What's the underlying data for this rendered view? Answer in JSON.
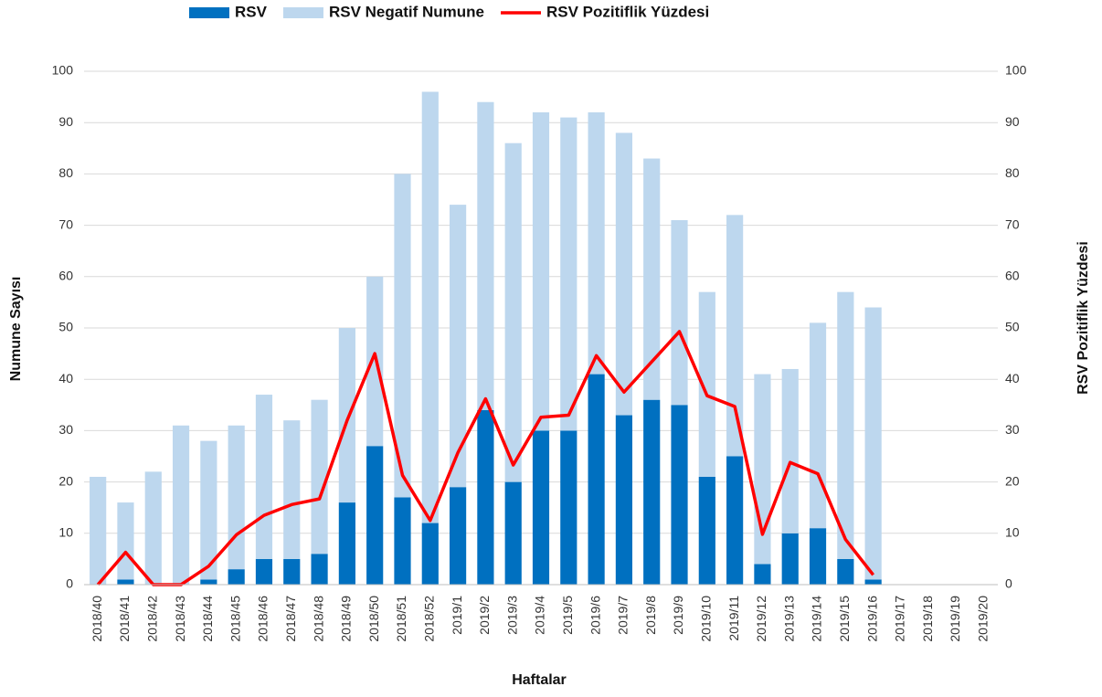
{
  "chart_data": {
    "type": "bar",
    "categories": [
      "2018/40",
      "2018/41",
      "2018/42",
      "2018/43",
      "2018/44",
      "2018/45",
      "2018/46",
      "2018/47",
      "2018/48",
      "2018/49",
      "2018/50",
      "2018/51",
      "2018/52",
      "2019/1",
      "2019/2",
      "2019/3",
      "2019/4",
      "2019/5",
      "2019/6",
      "2019/7",
      "2019/8",
      "2019/9",
      "2019/10",
      "2019/11",
      "2019/12",
      "2019/13",
      "2019/14",
      "2019/15",
      "2019/16",
      "2019/17",
      "2019/18",
      "2019/19",
      "2019/20"
    ],
    "series": [
      {
        "name": "RSV",
        "type": "bar",
        "stacked": true,
        "color": "#0070c0",
        "values": [
          0,
          1,
          0,
          0,
          1,
          3,
          5,
          5,
          6,
          16,
          27,
          17,
          12,
          19,
          34,
          20,
          30,
          30,
          41,
          33,
          36,
          35,
          21,
          25,
          4,
          10,
          11,
          5,
          1,
          null,
          null,
          null,
          null
        ]
      },
      {
        "name": "RSV Negatif Numune",
        "type": "bar",
        "stacked": true,
        "color": "#bdd7ee",
        "values": [
          21,
          15,
          22,
          31,
          27,
          28,
          32,
          27,
          30,
          34,
          33,
          63,
          84,
          55,
          60,
          66,
          62,
          61,
          51,
          55,
          47,
          36,
          36,
          47,
          37,
          32,
          40,
          52,
          53,
          null,
          null,
          null,
          null
        ]
      },
      {
        "name": "RSV Pozitiflik Yüzdesi",
        "type": "line",
        "axis": "y2",
        "color": "#ff0000",
        "values": [
          0,
          6.3,
          0,
          0,
          3.6,
          9.7,
          13.5,
          15.6,
          16.7,
          32,
          45,
          21.3,
          12.5,
          25.7,
          36.2,
          23.3,
          32.6,
          33,
          44.6,
          37.5,
          43.4,
          49.3,
          36.8,
          34.7,
          9.8,
          23.8,
          21.6,
          8.8,
          1.9,
          null,
          null,
          null,
          null
        ]
      }
    ],
    "x_label": "Haftalar",
    "y_label": "Numune Sayısı",
    "y2_label": "RSV Pozitiflik Yüzdesi",
    "ylim": [
      0,
      100
    ],
    "yticks": [
      0,
      10,
      20,
      30,
      40,
      50,
      60,
      70,
      80,
      90,
      100
    ],
    "y2lim": [
      0,
      100
    ],
    "y2ticks": [
      0,
      10,
      20,
      30,
      40,
      50,
      60,
      70,
      80,
      90,
      100
    ],
    "grid": true,
    "legend": "top"
  }
}
